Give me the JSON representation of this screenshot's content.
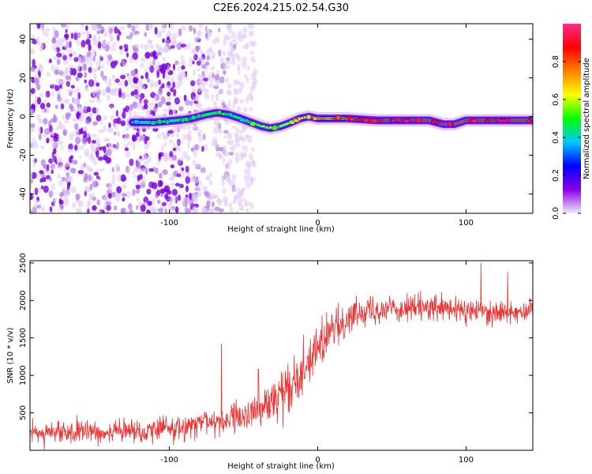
{
  "title": "C2E6.2024.215.02.54.G30",
  "chart_data": [
    {
      "type": "heatmap",
      "xlabel": "Height of straight line (km)",
      "ylabel": "Frequency (Hz)",
      "xlim": [
        -194,
        145
      ],
      "ylim": [
        -50,
        48
      ],
      "x_ticks": [
        -100,
        0,
        100
      ],
      "y_ticks": [
        -40,
        -20,
        0,
        20,
        40
      ],
      "colorbar": {
        "label": "Normalized spectral amplitude",
        "range": [
          0,
          1
        ],
        "ticks": [
          "0.0",
          "0.2",
          "0.4",
          "0.6",
          "0.8"
        ],
        "colors": [
          "#f2e8fa",
          "#8a00e8",
          "#0000ff",
          "#00c8ff",
          "#00ff00",
          "#ffff00",
          "#ff8000",
          "#ff0000",
          "#ff2b8f"
        ]
      },
      "noise_region_x": [
        -194,
        -60
      ],
      "ridge": {
        "x": [
          -125,
          -110,
          -95,
          -85,
          -75,
          -68,
          -60,
          -52,
          -45,
          -38,
          -32,
          -25,
          -18,
          -12,
          -6,
          0,
          10,
          20,
          40,
          60,
          75,
          85,
          92,
          100,
          110,
          120,
          130,
          145
        ],
        "y": [
          -3,
          -3,
          -2,
          -1,
          1,
          2,
          1,
          -1,
          -3,
          -5,
          -6,
          -5,
          -3,
          -1,
          0,
          -1,
          -1,
          -1,
          -2,
          -2,
          -2,
          -4,
          -4,
          -2,
          -2,
          -2,
          -2,
          -2
        ],
        "amplitude": [
          0.35,
          0.4,
          0.45,
          0.5,
          0.5,
          0.5,
          0.45,
          0.45,
          0.5,
          0.55,
          0.55,
          0.6,
          0.6,
          0.65,
          0.7,
          0.75,
          0.8,
          0.85,
          0.9,
          0.9,
          0.9,
          0.95,
          0.95,
          0.9,
          0.9,
          0.9,
          0.9,
          0.9
        ]
      }
    },
    {
      "type": "line",
      "xlabel": "Height of straight line (km)",
      "ylabel": "SNR (10 * v/v)",
      "xlim": [
        -194,
        145
      ],
      "ylim": [
        0,
        2530
      ],
      "x_ticks": [
        -100,
        0,
        100
      ],
      "y_ticks": [
        500,
        1000,
        1500,
        2000,
        2500
      ],
      "series": [
        {
          "color": "#ee3333",
          "trend": {
            "x": [
              -194,
              -150,
              -120,
              -90,
              -70,
              -55,
              -40,
              -30,
              -20,
              -10,
              0,
              10,
              20,
              30,
              50,
              80,
              100,
              120,
              145
            ],
            "y": [
              230,
              240,
              260,
              310,
              380,
              420,
              520,
              650,
              850,
              1100,
              1350,
              1600,
              1750,
              1880,
              1900,
              1880,
              1860,
              1850,
              1870
            ]
          },
          "spread": {
            "x": [
              -194,
              -60,
              -40,
              -20,
              0,
              20,
              40,
              145
            ],
            "y": [
              170,
              230,
              330,
              420,
              380,
              260,
              230,
              230
            ]
          },
          "peaks": [
            {
              "x": -65,
              "y": 1420
            },
            {
              "x": -40,
              "y": 1080
            },
            {
              "x": -20,
              "y": 1160
            },
            {
              "x": 2,
              "y": 1610
            },
            {
              "x": 15,
              "y": 1550
            },
            {
              "x": 110,
              "y": 2500
            },
            {
              "x": 128,
              "y": 2380
            }
          ]
        }
      ]
    }
  ]
}
